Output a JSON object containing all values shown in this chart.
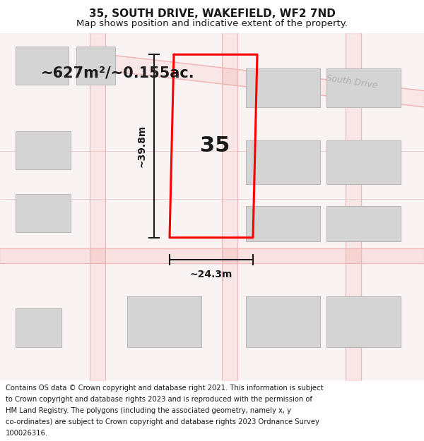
{
  "title": "35, SOUTH DRIVE, WAKEFIELD, WF2 7ND",
  "subtitle": "Map shows position and indicative extent of the property.",
  "area_text": "~627m²/~0.155ac.",
  "label_35": "35",
  "dim_height": "~39.8m",
  "dim_width": "~24.3m",
  "footer_lines": [
    "Contains OS data © Crown copyright and database right 2021. This information is subject",
    "to Crown copyright and database rights 2023 and is reproduced with the permission of",
    "HM Land Registry. The polygons (including the associated geometry, namely x, y",
    "co-ordinates) are subject to Crown copyright and database rights 2023 Ordnance Survey",
    "100026316."
  ],
  "bg_color": "#f5eeee",
  "map_bg": "#ffffff",
  "road_color": "#f0b8b8",
  "building_color": "#d4d4d4",
  "building_edge_color": "#bbbbbb",
  "plot_border_color": "#ff0000",
  "dim_line_color": "#1a1a1a",
  "title_fontsize": 11,
  "subtitle_fontsize": 9.5,
  "area_fontsize": 15,
  "label_fontsize": 22,
  "dim_fontsize": 10,
  "footer_fontsize": 7.2
}
